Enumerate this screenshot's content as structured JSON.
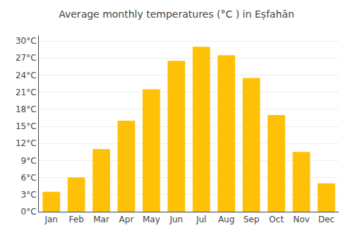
{
  "chart_data": {
    "type": "bar",
    "title": "Average monthly temperatures (°C ) in Eṣfahān",
    "categories": [
      "Jan",
      "Feb",
      "Mar",
      "Apr",
      "May",
      "Jun",
      "Jul",
      "Aug",
      "Sep",
      "Oct",
      "Nov",
      "Dec"
    ],
    "values": [
      3.5,
      6.0,
      11.0,
      16.0,
      21.5,
      26.5,
      29.0,
      27.5,
      23.5,
      17.0,
      10.5,
      5.0
    ],
    "color": "#FFC107",
    "ylim": [
      0,
      31
    ],
    "yticks": [
      {
        "value": 0,
        "label": "0°C"
      },
      {
        "value": 3,
        "label": "3°C"
      },
      {
        "value": 6,
        "label": "6°C"
      },
      {
        "value": 9,
        "label": "9°C"
      },
      {
        "value": 12,
        "label": "12°C"
      },
      {
        "value": 15,
        "label": "15°C"
      },
      {
        "value": 18,
        "label": "18°C"
      },
      {
        "value": 21,
        "label": "21°C"
      },
      {
        "value": 24,
        "label": "24°C"
      },
      {
        "value": 27,
        "label": "27°C"
      },
      {
        "value": 30,
        "label": "30°C"
      }
    ],
    "grid": true
  }
}
